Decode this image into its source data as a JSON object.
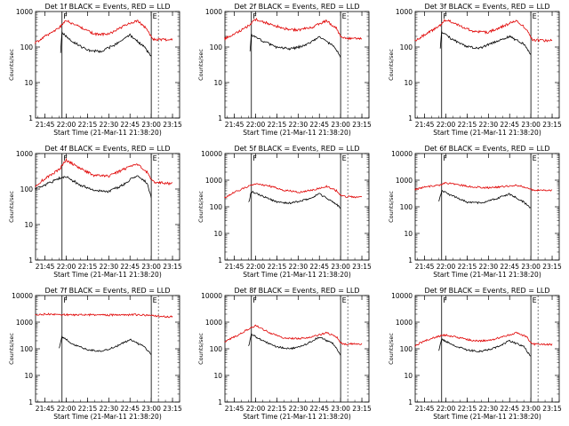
{
  "colors": {
    "events": "#000000",
    "lld": "#e00000",
    "axes": "#000000",
    "background": "#ffffff"
  },
  "chart_data": [
    {
      "type": "line",
      "title": "Det 1f BLACK = Events, RED = LLD",
      "xlabel": "Start Time (21-Mar-11 21:38:20)",
      "ylabel": "Counts/sec",
      "ylog": true,
      "ylim": [
        1,
        1000
      ],
      "yticks": [
        "1",
        "10",
        "100",
        "1000"
      ],
      "xticks": [
        "21:45",
        "22:00",
        "22:15",
        "22:30",
        "22:45",
        "23:00",
        "23:15"
      ],
      "markers": {
        "F": "21:57",
        "E": "23:00"
      },
      "series": [
        {
          "name": "Events",
          "x": [
            "21:56",
            "21:57",
            "22:05",
            "22:15",
            "22:25",
            "22:35",
            "22:45",
            "22:55",
            "23:00"
          ],
          "values": [
            70,
            250,
            140,
            80,
            75,
            120,
            220,
            100,
            55
          ]
        },
        {
          "name": "LLD",
          "x": [
            "21:38",
            "21:45",
            "21:55",
            "22:00",
            "22:10",
            "22:20",
            "22:30",
            "22:40",
            "22:50",
            "22:57",
            "23:01",
            "23:10",
            "23:15"
          ],
          "values": [
            130,
            200,
            350,
            550,
            360,
            230,
            230,
            380,
            560,
            320,
            165,
            160,
            165
          ]
        }
      ]
    },
    {
      "type": "line",
      "title": "Det 2f BLACK = Events, RED = LLD",
      "xlabel": "Start Time (21-Mar-11 21:38:20)",
      "ylabel": "Counts/sec",
      "ylog": true,
      "ylim": [
        1,
        1000
      ],
      "yticks": [
        "1",
        "10",
        "100",
        "1000"
      ],
      "xticks": [
        "21:45",
        "22:00",
        "22:15",
        "22:30",
        "22:45",
        "23:00",
        "23:15"
      ],
      "markers": {
        "F": "21:57",
        "E": "23:00"
      },
      "series": [
        {
          "name": "Events",
          "x": [
            "21:56",
            "21:57",
            "22:05",
            "22:15",
            "22:25",
            "22:35",
            "22:45",
            "22:55",
            "23:00"
          ],
          "values": [
            80,
            220,
            150,
            95,
            90,
            110,
            190,
            110,
            55
          ]
        },
        {
          "name": "LLD",
          "x": [
            "21:38",
            "21:45",
            "21:55",
            "22:00",
            "22:10",
            "22:20",
            "22:30",
            "22:40",
            "22:50",
            "22:57",
            "23:01",
            "23:10",
            "23:15"
          ],
          "values": [
            170,
            230,
            400,
            600,
            450,
            330,
            300,
            360,
            550,
            330,
            180,
            175,
            180
          ]
        }
      ]
    },
    {
      "type": "line",
      "title": "Det 3f BLACK = Events, RED = LLD",
      "xlabel": "Start Time (21-Mar-11 21:38:20)",
      "ylabel": "Counts/sec",
      "ylog": true,
      "ylim": [
        1,
        1000
      ],
      "yticks": [
        "1",
        "10",
        "100",
        "1000"
      ],
      "xticks": [
        "21:45",
        "22:00",
        "22:15",
        "22:30",
        "22:45",
        "23:00",
        "23:15"
      ],
      "markers": {
        "F": "21:57",
        "E": "23:00"
      },
      "series": [
        {
          "name": "Events",
          "x": [
            "21:56",
            "21:57",
            "22:05",
            "22:15",
            "22:25",
            "22:35",
            "22:45",
            "22:55",
            "23:00"
          ],
          "values": [
            90,
            260,
            160,
            100,
            95,
            140,
            200,
            120,
            60
          ]
        },
        {
          "name": "LLD",
          "x": [
            "21:38",
            "21:45",
            "21:55",
            "22:00",
            "22:10",
            "22:20",
            "22:30",
            "22:40",
            "22:50",
            "22:57",
            "23:01",
            "23:10",
            "23:15"
          ],
          "values": [
            150,
            220,
            380,
            600,
            400,
            270,
            260,
            380,
            560,
            320,
            160,
            150,
            155
          ]
        }
      ]
    },
    {
      "type": "line",
      "title": "Det 4f BLACK = Events, RED = LLD",
      "xlabel": "Start Time (21-Mar-11 21:38:20)",
      "ylabel": "Counts/sec",
      "ylog": true,
      "ylim": [
        1,
        1000
      ],
      "yticks": [
        "1",
        "10",
        "100",
        "1000"
      ],
      "xticks": [
        "21:45",
        "22:00",
        "22:15",
        "22:30",
        "22:45",
        "23:00",
        "23:15"
      ],
      "markers": {
        "F": "21:57",
        "E": "23:00"
      },
      "series": [
        {
          "name": "Events",
          "x": [
            "21:38",
            "21:45",
            "21:55",
            "22:00",
            "22:10",
            "22:20",
            "22:30",
            "22:40",
            "22:50",
            "22:57",
            "23:00"
          ],
          "values": [
            100,
            130,
            200,
            220,
            130,
            90,
            85,
            130,
            250,
            150,
            55
          ]
        },
        {
          "name": "LLD",
          "x": [
            "21:38",
            "21:45",
            "21:55",
            "22:00",
            "22:10",
            "22:20",
            "22:30",
            "22:40",
            "22:50",
            "22:57",
            "23:01",
            "23:10",
            "23:15"
          ],
          "values": [
            120,
            200,
            350,
            650,
            380,
            240,
            230,
            350,
            520,
            300,
            160,
            145,
            140
          ]
        }
      ]
    },
    {
      "type": "line",
      "title": "Det 5f BLACK = Events, RED = LLD",
      "xlabel": "Start Time (21-Mar-11 21:38:20)",
      "ylabel": "Counts/sec",
      "ylog": true,
      "ylim": [
        1,
        10000
      ],
      "yticks": [
        "1",
        "10",
        "100",
        "1000",
        "10000"
      ],
      "xticks": [
        "21:45",
        "22:00",
        "22:15",
        "22:30",
        "22:45",
        "23:00",
        "23:15"
      ],
      "markers": {
        "F": "21:57",
        "E": "23:00"
      },
      "series": [
        {
          "name": "Events",
          "x": [
            "21:55",
            "21:57",
            "22:05",
            "22:15",
            "22:25",
            "22:35",
            "22:45",
            "22:55",
            "23:00"
          ],
          "values": [
            140,
            380,
            250,
            150,
            140,
            180,
            300,
            150,
            90
          ]
        },
        {
          "name": "LLD",
          "x": [
            "21:38",
            "21:45",
            "21:55",
            "22:00",
            "22:10",
            "22:20",
            "22:30",
            "22:40",
            "22:50",
            "22:57",
            "23:01",
            "23:10",
            "23:15"
          ],
          "values": [
            220,
            350,
            600,
            750,
            600,
            420,
            350,
            420,
            580,
            400,
            250,
            230,
            240
          ]
        }
      ]
    },
    {
      "type": "line",
      "title": "Det 6f BLACK = Events, RED = LLD",
      "xlabel": "Start Time (21-Mar-11 21:38:20)",
      "ylabel": "Counts/sec",
      "ylog": true,
      "ylim": [
        1,
        10000
      ],
      "yticks": [
        "1",
        "10",
        "100",
        "1000",
        "10000"
      ],
      "xticks": [
        "21:45",
        "22:00",
        "22:15",
        "22:30",
        "22:45",
        "23:00",
        "23:15"
      ],
      "markers": {
        "F": "21:57",
        "E": "23:00"
      },
      "series": [
        {
          "name": "Events",
          "x": [
            "21:55",
            "21:57",
            "22:05",
            "22:15",
            "22:25",
            "22:35",
            "22:45",
            "22:55",
            "23:00"
          ],
          "values": [
            150,
            400,
            250,
            150,
            140,
            200,
            300,
            150,
            90
          ]
        },
        {
          "name": "LLD",
          "x": [
            "21:38",
            "21:45",
            "21:55",
            "22:00",
            "22:10",
            "22:20",
            "22:30",
            "22:40",
            "22:50",
            "22:57",
            "23:01",
            "23:10",
            "23:15"
          ],
          "values": [
            450,
            550,
            650,
            800,
            650,
            550,
            520,
            580,
            650,
            520,
            420,
            420,
            420
          ]
        }
      ]
    },
    {
      "type": "line",
      "title": "Det 7f BLACK = Events, RED = LLD",
      "xlabel": "Start Time (21-Mar-11 21:38:20)",
      "ylabel": "Counts/sec",
      "ylog": true,
      "ylim": [
        1,
        10000
      ],
      "yticks": [
        "1",
        "10",
        "100",
        "1000",
        "10000"
      ],
      "xticks": [
        "21:45",
        "22:00",
        "22:15",
        "22:30",
        "22:45",
        "23:00",
        "23:15"
      ],
      "markers": {
        "F": "21:57",
        "E": "23:00"
      },
      "series": [
        {
          "name": "Events",
          "x": [
            "21:55",
            "21:57",
            "22:05",
            "22:15",
            "22:25",
            "22:35",
            "22:45",
            "22:55",
            "23:00"
          ],
          "values": [
            100,
            280,
            150,
            90,
            80,
            120,
            220,
            120,
            60
          ]
        },
        {
          "name": "LLD",
          "x": [
            "21:38",
            "21:45",
            "21:55",
            "22:00",
            "22:10",
            "22:20",
            "22:30",
            "22:40",
            "22:50",
            "22:57",
            "23:01",
            "23:10",
            "23:15"
          ],
          "values": [
            1800,
            2000,
            2000,
            1900,
            1900,
            1900,
            1850,
            1900,
            1900,
            1850,
            1700,
            1600,
            1600
          ]
        }
      ]
    },
    {
      "type": "line",
      "title": "Det 8f BLACK = Events, RED = LLD",
      "xlabel": "Start Time (21-Mar-11 21:38:20)",
      "ylabel": "Counts/sec",
      "ylog": true,
      "ylim": [
        1,
        10000
      ],
      "yticks": [
        "1",
        "10",
        "100",
        "1000",
        "10000"
      ],
      "xticks": [
        "21:45",
        "22:00",
        "22:15",
        "22:30",
        "22:45",
        "23:00",
        "23:15"
      ],
      "markers": {
        "F": "21:57",
        "E": "23:00"
      },
      "series": [
        {
          "name": "Events",
          "x": [
            "21:55",
            "21:57",
            "22:05",
            "22:15",
            "22:25",
            "22:35",
            "22:45",
            "22:55",
            "23:00"
          ],
          "values": [
            120,
            350,
            200,
            120,
            100,
            140,
            280,
            150,
            60
          ]
        },
        {
          "name": "LLD",
          "x": [
            "21:38",
            "21:45",
            "21:55",
            "22:00",
            "22:10",
            "22:20",
            "22:30",
            "22:40",
            "22:50",
            "22:57",
            "23:01",
            "23:10",
            "23:15"
          ],
          "values": [
            180,
            280,
            550,
            750,
            400,
            250,
            240,
            280,
            400,
            280,
            150,
            150,
            150
          ]
        }
      ]
    },
    {
      "type": "line",
      "title": "Det 9f BLACK = Events, RED = LLD",
      "xlabel": "Start Time (21-Mar-11 21:38:20)",
      "ylabel": "Counts/sec",
      "ylog": true,
      "ylim": [
        1,
        10000
      ],
      "yticks": [
        "1",
        "10",
        "100",
        "1000",
        "10000"
      ],
      "xticks": [
        "21:45",
        "22:00",
        "22:15",
        "22:30",
        "22:45",
        "23:00",
        "23:15"
      ],
      "markers": {
        "F": "21:57",
        "E": "23:00"
      },
      "series": [
        {
          "name": "Events",
          "x": [
            "21:55",
            "21:57",
            "22:05",
            "22:15",
            "22:25",
            "22:35",
            "22:45",
            "22:55",
            "23:00"
          ],
          "values": [
            90,
            230,
            140,
            90,
            80,
            110,
            200,
            120,
            50
          ]
        },
        {
          "name": "LLD",
          "x": [
            "21:38",
            "21:45",
            "21:55",
            "22:00",
            "22:10",
            "22:20",
            "22:30",
            "22:40",
            "22:50",
            "22:57",
            "23:01",
            "23:10",
            "23:15"
          ],
          "values": [
            130,
            200,
            300,
            330,
            250,
            200,
            200,
            280,
            400,
            280,
            150,
            145,
            145
          ]
        }
      ]
    }
  ]
}
